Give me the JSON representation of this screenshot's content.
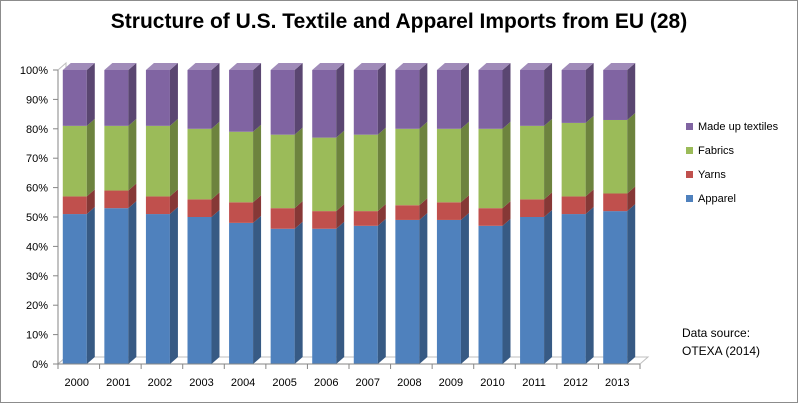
{
  "chart_data": {
    "type": "bar",
    "stacked": true,
    "percent_stacked": true,
    "three_d": true,
    "title": "Structure of U.S. Textile and Apparel Imports from EU (28)",
    "categories": [
      "2000",
      "2001",
      "2002",
      "2003",
      "2004",
      "2005",
      "2006",
      "2007",
      "2008",
      "2009",
      "2010",
      "2011",
      "2012",
      "2013"
    ],
    "series": [
      {
        "name": "Apparel",
        "color": "#4f81bd",
        "values": [
          51,
          53,
          51,
          50,
          48,
          46,
          46,
          47,
          49,
          49,
          47,
          50,
          51,
          52
        ]
      },
      {
        "name": "Yarns",
        "color": "#c0504d",
        "values": [
          6,
          6,
          6,
          6,
          7,
          7,
          6,
          5,
          5,
          6,
          6,
          6,
          6,
          6
        ]
      },
      {
        "name": "Fabrics",
        "color": "#9bbb59",
        "values": [
          24,
          22,
          24,
          24,
          24,
          25,
          25,
          26,
          26,
          25,
          27,
          25,
          25,
          25
        ]
      },
      {
        "name": "Made up textiles",
        "color": "#8064a2",
        "values": [
          19,
          19,
          19,
          20,
          21,
          22,
          23,
          22,
          20,
          20,
          20,
          19,
          18,
          17
        ]
      }
    ],
    "y_ticks": [
      "0%",
      "10%",
      "20%",
      "30%",
      "40%",
      "50%",
      "60%",
      "70%",
      "80%",
      "90%",
      "100%"
    ],
    "ylim": [
      0,
      100
    ],
    "legend_position": "right",
    "legend_order": [
      "Made up textiles",
      "Fabrics",
      "Yarns",
      "Apparel"
    ],
    "grid": false
  },
  "source_note": {
    "line1": "Data source:",
    "line2": "OTEXA (2014)"
  }
}
